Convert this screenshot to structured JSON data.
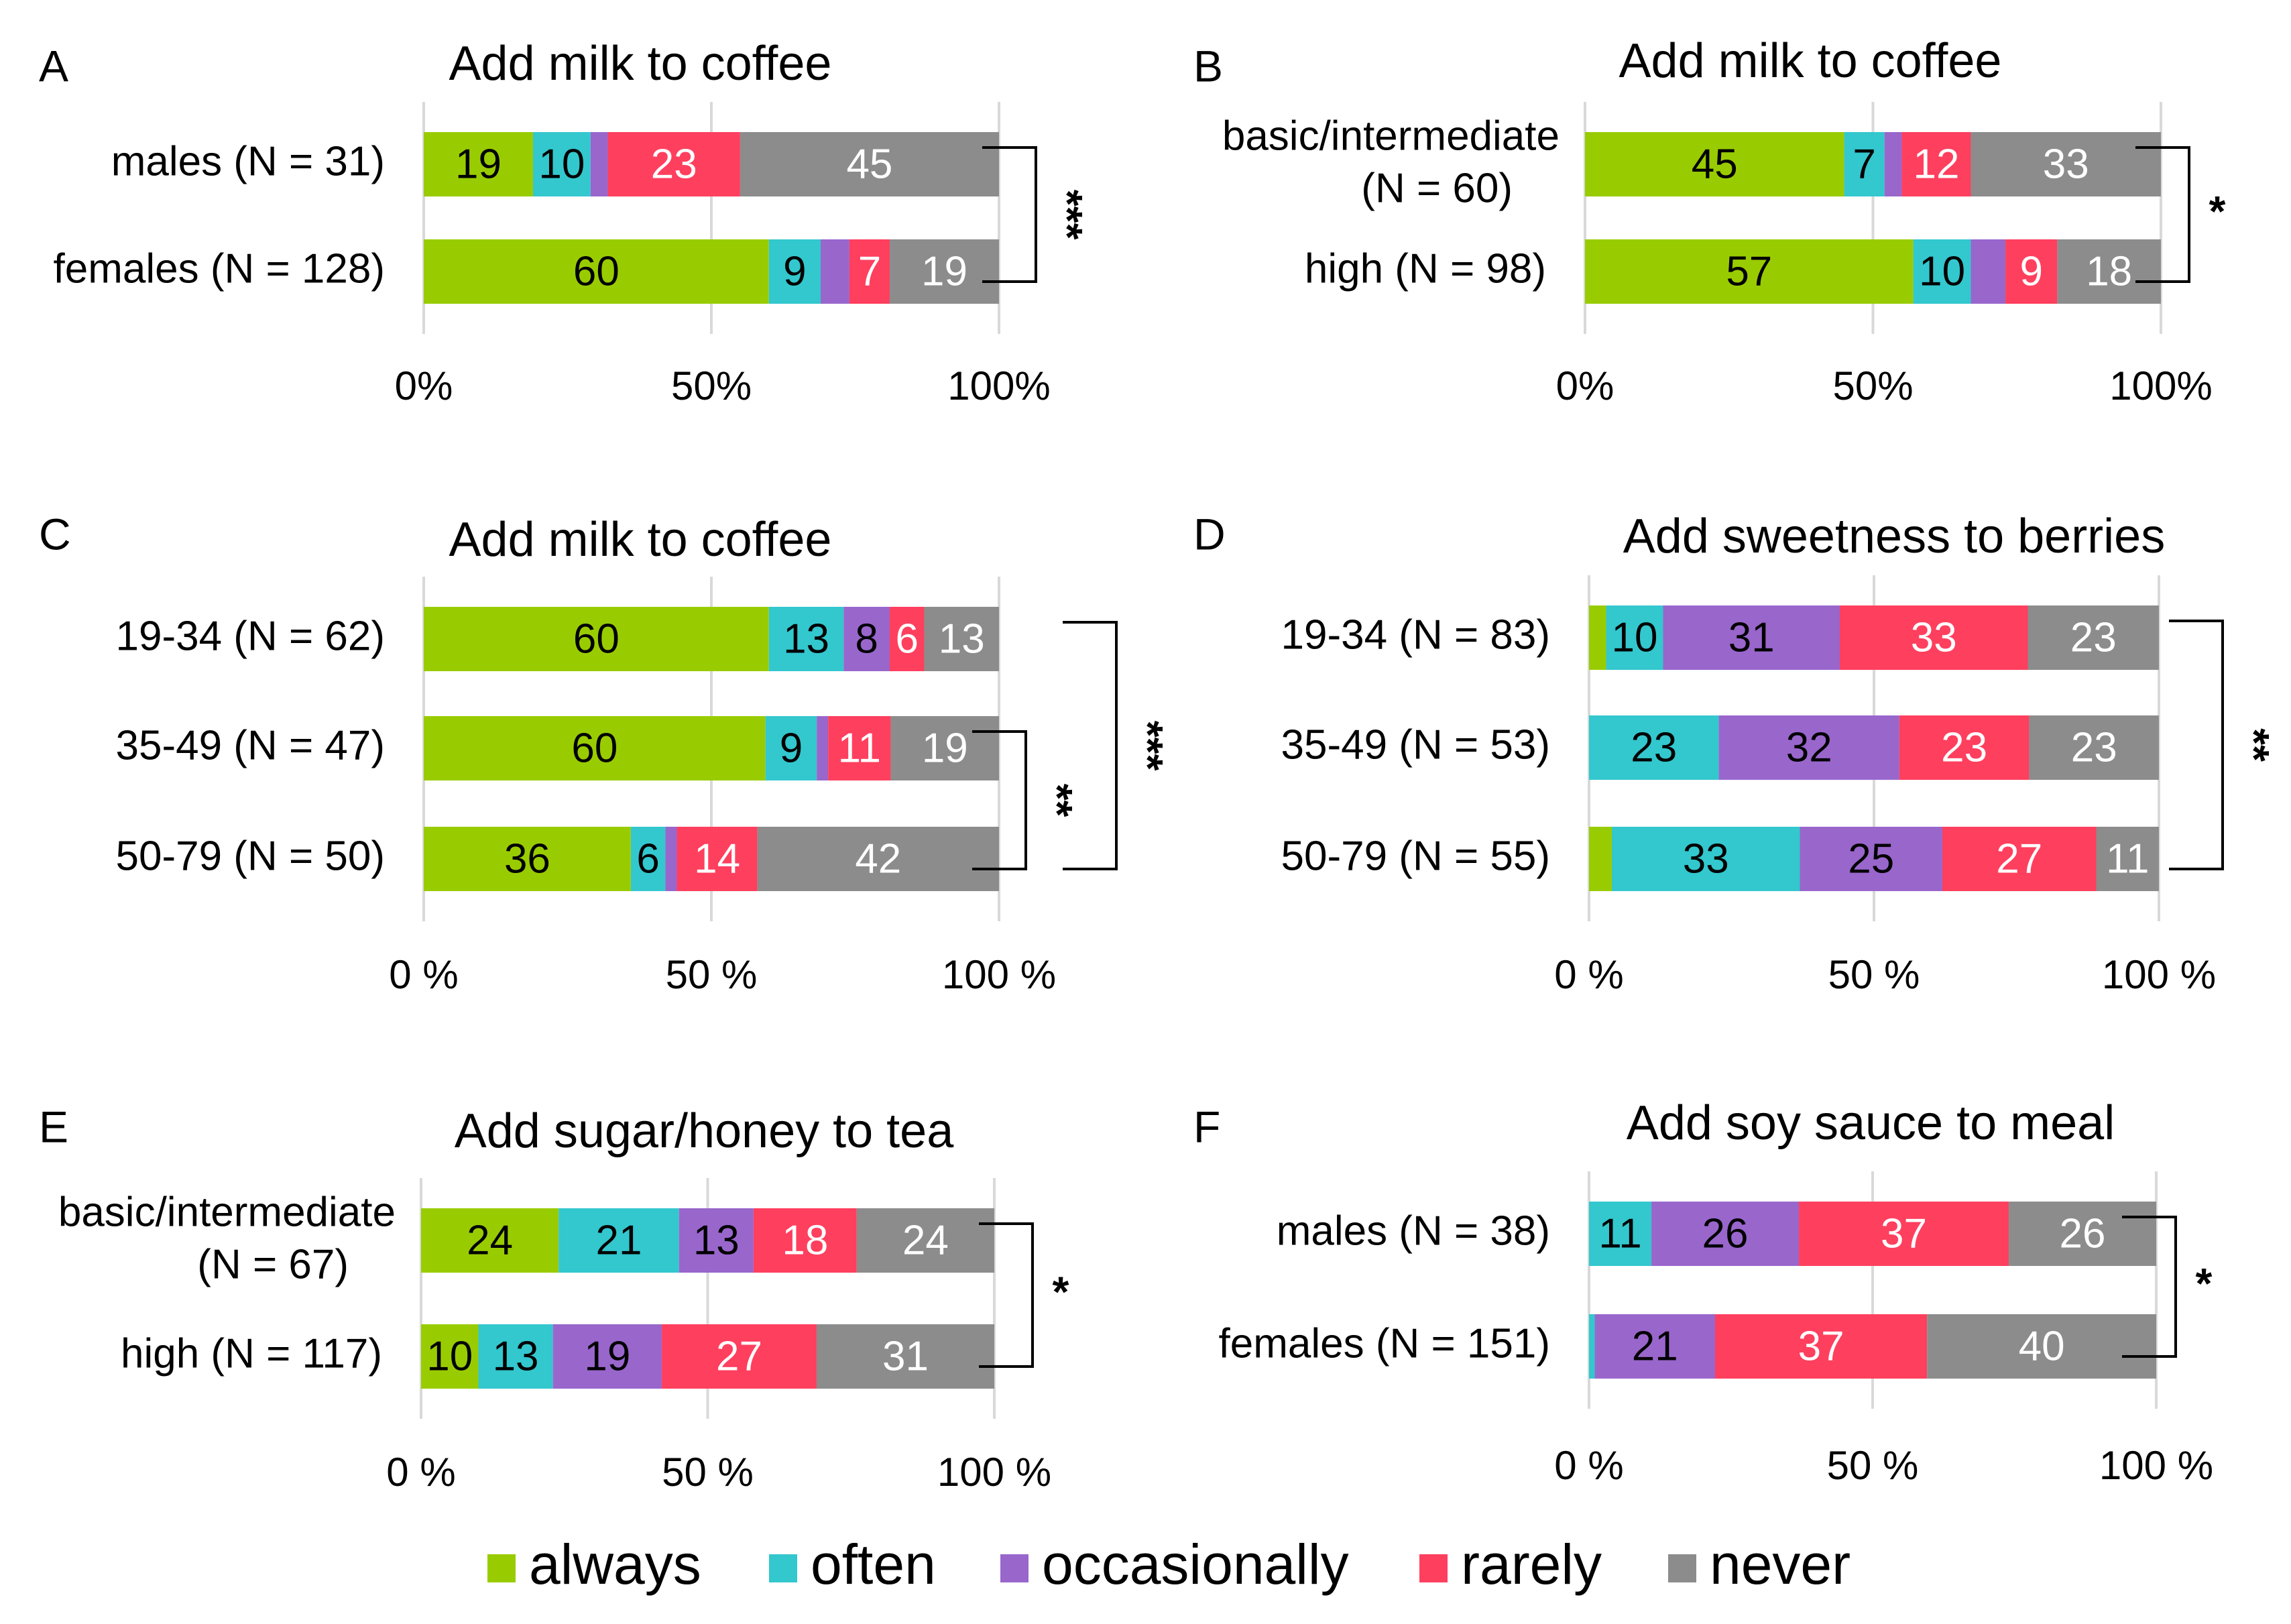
{
  "colors": {
    "always": "#99CC00",
    "often": "#33C7CE",
    "occasionally": "#9966CC",
    "rarely": "#FF3F5E",
    "never": "#8C8C8C",
    "grid": "#D9D9D9",
    "bracket": "#000000"
  },
  "legend": {
    "items": [
      {
        "key": "always",
        "label": "always"
      },
      {
        "key": "often",
        "label": "often"
      },
      {
        "key": "occasionally",
        "label": "occasionally"
      },
      {
        "key": "rarely",
        "label": "rarely"
      },
      {
        "key": "never",
        "label": "never"
      }
    ]
  },
  "chart_data": [
    {
      "panel": "A",
      "type": "bar",
      "orientation": "horizontal",
      "stacked": "percent",
      "title": "Add milk to coffee",
      "categories": [
        [
          "males (N = 31)"
        ],
        [
          "females (N = 128)"
        ]
      ],
      "series_order": [
        "always",
        "often",
        "occasionally",
        "rarely",
        "never"
      ],
      "values": [
        [
          19,
          10,
          3,
          23,
          45
        ],
        [
          60,
          9,
          5,
          7,
          19
        ]
      ],
      "labels": [
        [
          "19",
          "10",
          "",
          "23",
          "45"
        ],
        [
          "60",
          "9",
          "",
          "7",
          "19"
        ]
      ],
      "xticks": [
        "0%",
        "50%",
        "100%"
      ],
      "significance": [
        {
          "rows": [
            0,
            1
          ],
          "text": "***",
          "rotated": true
        }
      ]
    },
    {
      "panel": "B",
      "type": "bar",
      "orientation": "horizontal",
      "stacked": "percent",
      "title": "Add milk to coffee",
      "categories": [
        [
          "basic/intermediate",
          "(N = 60)"
        ],
        [
          "high (N = 98)"
        ]
      ],
      "series_order": [
        "always",
        "often",
        "occasionally",
        "rarely",
        "never"
      ],
      "values": [
        [
          45,
          7,
          3,
          12,
          33
        ],
        [
          57,
          10,
          6,
          9,
          18
        ]
      ],
      "labels": [
        [
          "45",
          "7",
          "",
          "12",
          "33"
        ],
        [
          "57",
          "10",
          "",
          "9",
          "18"
        ]
      ],
      "xticks": [
        "0%",
        "50%",
        "100%"
      ],
      "significance": [
        {
          "rows": [
            0,
            1
          ],
          "text": "*",
          "rotated": false
        }
      ]
    },
    {
      "panel": "C",
      "type": "bar",
      "orientation": "horizontal",
      "stacked": "percent",
      "title": "Add milk to coffee",
      "categories": [
        [
          "19-34 (N = 62)"
        ],
        [
          "35-49 (N = 47)"
        ],
        [
          "50-79 (N = 50)"
        ]
      ],
      "series_order": [
        "always",
        "often",
        "occasionally",
        "rarely",
        "never"
      ],
      "values": [
        [
          60,
          13,
          8,
          6,
          13
        ],
        [
          60,
          9,
          2,
          11,
          19
        ],
        [
          36,
          6,
          2,
          14,
          42
        ]
      ],
      "labels": [
        [
          "60",
          "13",
          "8",
          "6",
          "13"
        ],
        [
          "60",
          "9",
          "",
          "11",
          "19"
        ],
        [
          "36",
          "6",
          "",
          "14",
          "42"
        ]
      ],
      "xticks": [
        "0 %",
        "50 %",
        "100 %"
      ],
      "significance": [
        {
          "rows": [
            1,
            2
          ],
          "text": "**",
          "rotated": true
        },
        {
          "rows": [
            0,
            2
          ],
          "text": "***",
          "rotated": true
        }
      ]
    },
    {
      "panel": "D",
      "type": "bar",
      "orientation": "horizontal",
      "stacked": "percent",
      "title": "Add sweetness to berries",
      "categories": [
        [
          "19-34 (N = 83)"
        ],
        [
          "35-49 (N = 53)"
        ],
        [
          "50-79 (N = 55)"
        ]
      ],
      "series_order": [
        "always",
        "often",
        "occasionally",
        "rarely",
        "never"
      ],
      "values": [
        [
          3,
          10,
          31,
          33,
          23
        ],
        [
          0,
          23,
          32,
          23,
          23
        ],
        [
          4,
          33,
          25,
          27,
          11
        ]
      ],
      "labels": [
        [
          "",
          "10",
          "31",
          "33",
          "23"
        ],
        [
          "",
          "23",
          "32",
          "23",
          "23"
        ],
        [
          "",
          "33",
          "25",
          "27",
          "11"
        ]
      ],
      "xticks": [
        "0 %",
        "50 %",
        "100 %"
      ],
      "significance": [
        {
          "rows": [
            0,
            2
          ],
          "text": "**",
          "rotated": true
        }
      ]
    },
    {
      "panel": "E",
      "type": "bar",
      "orientation": "horizontal",
      "stacked": "percent",
      "title": "Add sugar/honey to tea",
      "categories": [
        [
          "basic/intermediate",
          "(N = 67)"
        ],
        [
          "high (N = 117)"
        ]
      ],
      "series_order": [
        "always",
        "often",
        "occasionally",
        "rarely",
        "never"
      ],
      "values": [
        [
          24,
          21,
          13,
          18,
          24
        ],
        [
          10,
          13,
          19,
          27,
          31
        ]
      ],
      "labels": [
        [
          "24",
          "21",
          "13",
          "18",
          "24"
        ],
        [
          "10",
          "13",
          "19",
          "27",
          "31"
        ]
      ],
      "xticks": [
        "0 %",
        "50 %",
        "100 %"
      ],
      "significance": [
        {
          "rows": [
            0,
            1
          ],
          "text": "*",
          "rotated": false
        }
      ]
    },
    {
      "panel": "F",
      "type": "bar",
      "orientation": "horizontal",
      "stacked": "percent",
      "title": "Add soy sauce to meal",
      "categories": [
        [
          "males (N = 38)"
        ],
        [
          "females (N = 151)"
        ]
      ],
      "series_order": [
        "always",
        "often",
        "occasionally",
        "rarely",
        "never"
      ],
      "values": [
        [
          0,
          11,
          26,
          37,
          26
        ],
        [
          0,
          1,
          21,
          37,
          40
        ]
      ],
      "labels": [
        [
          "",
          "11",
          "26",
          "37",
          "26"
        ],
        [
          "",
          "",
          "21",
          "37",
          "40"
        ]
      ],
      "xticks": [
        "0 %",
        "50 %",
        "100 %"
      ],
      "significance": [
        {
          "rows": [
            0,
            1
          ],
          "text": "*",
          "rotated": false
        }
      ]
    }
  ]
}
